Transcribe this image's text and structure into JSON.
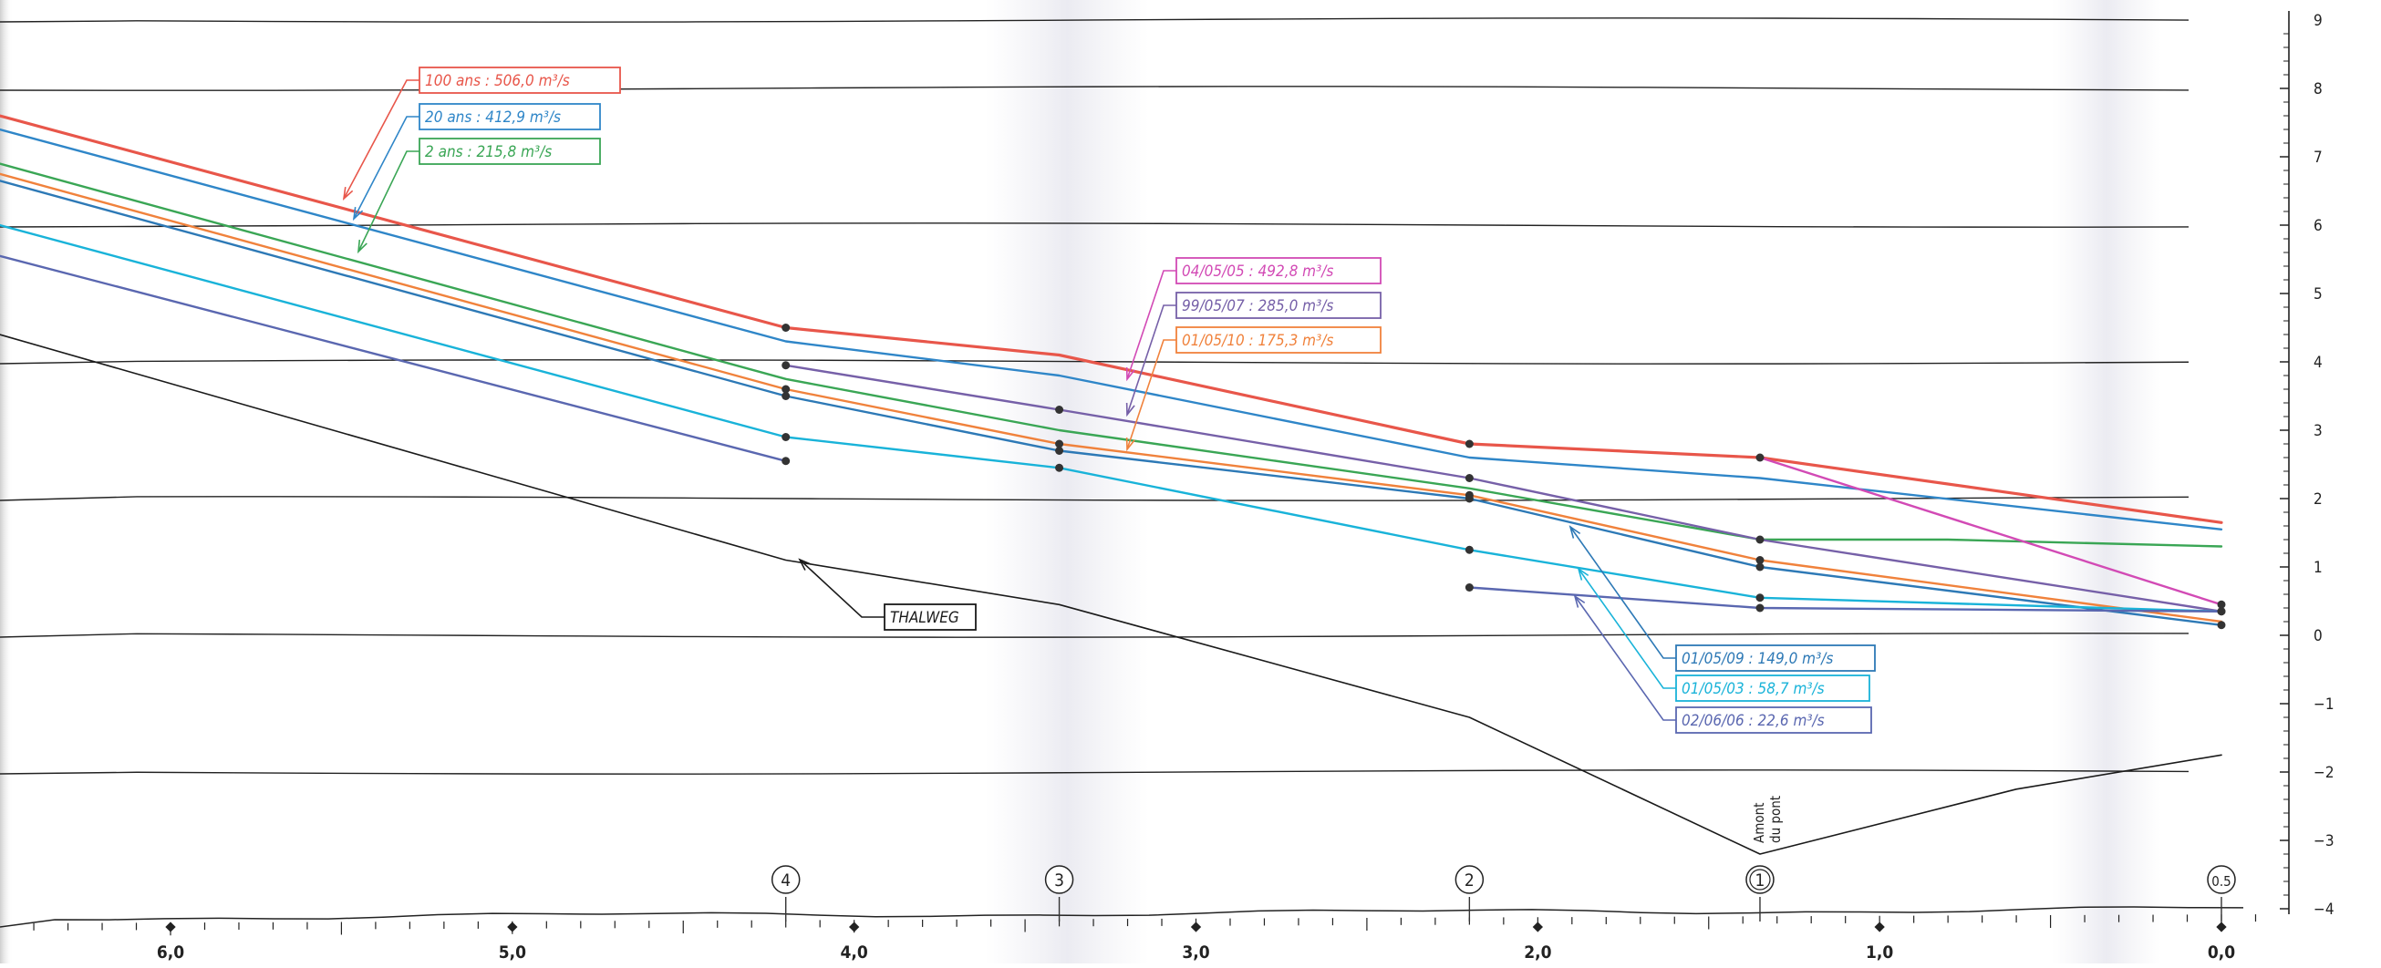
{
  "chart_data": {
    "type": "line",
    "xlim": [
      6.5,
      0.0
    ],
    "ylim": [
      -4,
      9
    ],
    "x_ticks": [
      {
        "x": 6.0,
        "label": "6,0"
      },
      {
        "x": 5.0,
        "label": "5,0"
      },
      {
        "x": 4.0,
        "label": "4,0"
      },
      {
        "x": 3.0,
        "label": "3,0"
      },
      {
        "x": 2.0,
        "label": "2,0"
      },
      {
        "x": 1.0,
        "label": "1,0"
      },
      {
        "x": 0.0,
        "label": "0,0"
      }
    ],
    "y_ticks": [
      {
        "y": 9,
        "label": "9"
      },
      {
        "y": 8,
        "label": "8"
      },
      {
        "y": 7,
        "label": "7"
      },
      {
        "y": 6,
        "label": "6"
      },
      {
        "y": 5,
        "label": "5"
      },
      {
        "y": 4,
        "label": "4"
      },
      {
        "y": 3,
        "label": "3"
      },
      {
        "y": 2,
        "label": "2"
      },
      {
        "y": 1,
        "label": "1"
      },
      {
        "y": 0,
        "label": "0"
      },
      {
        "y": -1,
        "label": "−1"
      },
      {
        "y": -2,
        "label": "−2"
      },
      {
        "y": -3,
        "label": "−3"
      },
      {
        "y": -4,
        "label": "−4"
      }
    ],
    "grid_y": [
      9,
      8,
      6,
      4,
      2,
      0,
      -2
    ],
    "sections": [
      {
        "x": 4.2,
        "label": "4"
      },
      {
        "x": 3.4,
        "label": "3"
      },
      {
        "x": 2.2,
        "label": "2"
      },
      {
        "x": 1.35,
        "label": "1"
      },
      {
        "x": 0.0,
        "label": "0.5"
      }
    ],
    "bridge_note": "Amont du pont",
    "series": [
      {
        "name": "100 ans : 506,0 m³/s",
        "color": "#e8564a",
        "x": [
          6.5,
          4.2,
          3.4,
          2.2,
          1.35,
          0.0
        ],
        "y": [
          7.6,
          4.5,
          4.1,
          2.8,
          2.6,
          1.65
        ],
        "markers": [
          4.2,
          2.2,
          1.35
        ]
      },
      {
        "name": "20 ans : 412,9 m³/s",
        "color": "#2f86c8",
        "x": [
          6.5,
          4.2,
          3.4,
          2.2,
          1.35,
          0.0
        ],
        "y": [
          7.4,
          4.3,
          3.8,
          2.6,
          2.3,
          1.55
        ],
        "markers": []
      },
      {
        "name": "2 ans : 215,8 m³/s",
        "color": "#3aa655",
        "x": [
          6.5,
          4.2,
          3.4,
          2.2,
          1.35,
          0.8,
          0.0
        ],
        "y": [
          6.9,
          3.75,
          3.0,
          2.15,
          1.4,
          1.4,
          1.3
        ],
        "markers": []
      },
      {
        "name": "04/05/05 : 492,8 m³/s",
        "color": "#d24ab5",
        "x": [
          1.35,
          0.0
        ],
        "y": [
          2.6,
          0.45
        ],
        "markers": [
          0.0
        ]
      },
      {
        "name": "99/05/07 : 285,0 m³/s",
        "color": "#7660a8",
        "x": [
          4.2,
          3.4,
          2.2,
          1.35,
          0.0
        ],
        "y": [
          3.95,
          3.3,
          2.3,
          1.4,
          0.35
        ],
        "markers": [
          4.2,
          3.4,
          2.2,
          1.35,
          0.0
        ]
      },
      {
        "name": "01/05/10 : 175,3 m³/s",
        "color": "#f0823c",
        "x": [
          6.5,
          4.2,
          3.4,
          2.2,
          1.35,
          0.0
        ],
        "y": [
          6.75,
          3.6,
          2.8,
          2.05,
          1.1,
          0.2
        ],
        "markers": [
          4.2,
          3.4,
          2.2,
          1.35
        ]
      },
      {
        "name": "01/05/09 : 149,0 m³/s",
        "color": "#2d79b6",
        "x": [
          6.5,
          4.2,
          3.4,
          2.2,
          1.35,
          0.0
        ],
        "y": [
          6.65,
          3.5,
          2.7,
          2.0,
          1.0,
          0.15
        ],
        "markers": [
          4.2,
          3.4,
          2.2,
          1.35,
          0.0
        ]
      },
      {
        "name": "01/05/03 : 58,7 m³/s",
        "color": "#19b3d9",
        "x": [
          6.5,
          4.2,
          3.4,
          2.2,
          1.35,
          0.0
        ],
        "y": [
          6.0,
          2.9,
          2.45,
          1.25,
          0.55,
          0.35
        ],
        "markers": [
          4.2,
          3.4,
          2.2,
          1.35,
          0.0
        ]
      },
      {
        "name": "02/06/06 : 22,6 m³/s",
        "color": "#5a67b0",
        "x": [
          6.5,
          4.2
        ],
        "y": [
          5.55,
          2.55
        ],
        "markers": [
          4.2
        ],
        "x2": [
          2.2,
          1.35,
          0.0
        ],
        "y2": [
          0.7,
          0.4,
          0.35
        ],
        "markers2": [
          2.2,
          1.35
        ]
      },
      {
        "name": "THALWEG",
        "color": "#1a1a1a",
        "x": [
          6.5,
          4.2,
          3.4,
          2.2,
          1.35,
          0.6,
          0.0
        ],
        "y": [
          4.4,
          1.1,
          0.45,
          -1.2,
          -3.2,
          -2.25,
          -1.75
        ],
        "markers": []
      }
    ],
    "legend": [
      {
        "text": "100 ans : 506,0 m³/s",
        "color": "#e8564a"
      },
      {
        "text": "20 ans : 412,9  m³/s",
        "color": "#2f86c8"
      },
      {
        "text": "2 ans : 215,8 m³/s",
        "color": "#3aa655"
      },
      {
        "text": "04/05/05 : 492,8 m³/s",
        "color": "#d24ab5"
      },
      {
        "text": "99/05/07 : 285,0 m³/s",
        "color": "#7660a8"
      },
      {
        "text": "01/05/10 : 175,3 m³/s",
        "color": "#f0823c"
      },
      {
        "text": "01/05/09 : 149,0 m³/s",
        "color": "#2d79b6"
      },
      {
        "text": "01/05/03 : 58,7 m³/s",
        "color": "#19b3d9"
      },
      {
        "text": "02/06/06 : 22,6 m³/s",
        "color": "#5a67b0"
      },
      {
        "text": "THALWEG",
        "color": "#1a1a1a"
      }
    ]
  }
}
